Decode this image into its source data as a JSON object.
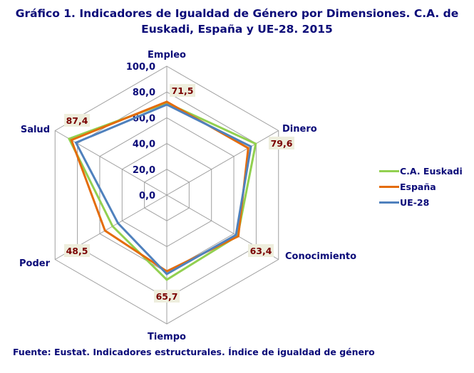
{
  "title_line1": "Gráfico 1. Indicadores de Igualdad de Género por Dimensiones.  C.A. de",
  "title_line2": "Euskadi, España y UE-28. 2015",
  "source": "Fuente: Eustat. Indicadores estructurales. Índice de igualdad de género",
  "colors": {
    "grid": "#a0a0a0",
    "text": "#0a0a78",
    "label_bg": "#eeeedd",
    "label_text": "#7a0000"
  },
  "chart_data": {
    "type": "radar",
    "title": "Gráfico 1. Indicadores de Igualdad de Género por Dimensiones. C.A. de Euskadi, España y UE-28. 2015",
    "categories": [
      "Empleo",
      "Dinero",
      "Conocimiento",
      "Tiempo",
      "Poder",
      "Salud"
    ],
    "radial_ticks": [
      "0,0",
      "20,0",
      "40,0",
      "60,0",
      "80,0",
      "100,0"
    ],
    "rlim": [
      0,
      100
    ],
    "grid": true,
    "legend_position": "right",
    "series": [
      {
        "name": "C.A. Euskadi",
        "color": "#92d050",
        "values": [
          71.5,
          79.6,
          63.4,
          65.7,
          48.5,
          87.4
        ]
      },
      {
        "name": "España",
        "color": "#e46c0a",
        "values": [
          72.4,
          72.9,
          64.0,
          59.2,
          55.3,
          85.4
        ]
      },
      {
        "name": "UE-28",
        "color": "#4f81bd",
        "values": [
          70.2,
          75.3,
          61.9,
          61.3,
          43.7,
          81.3
        ]
      }
    ],
    "data_labels": [
      "71,5",
      "79,6",
      "63,4",
      "65,7",
      "48,5",
      "87,4"
    ],
    "data_label_series": "C.A. Euskadi"
  }
}
